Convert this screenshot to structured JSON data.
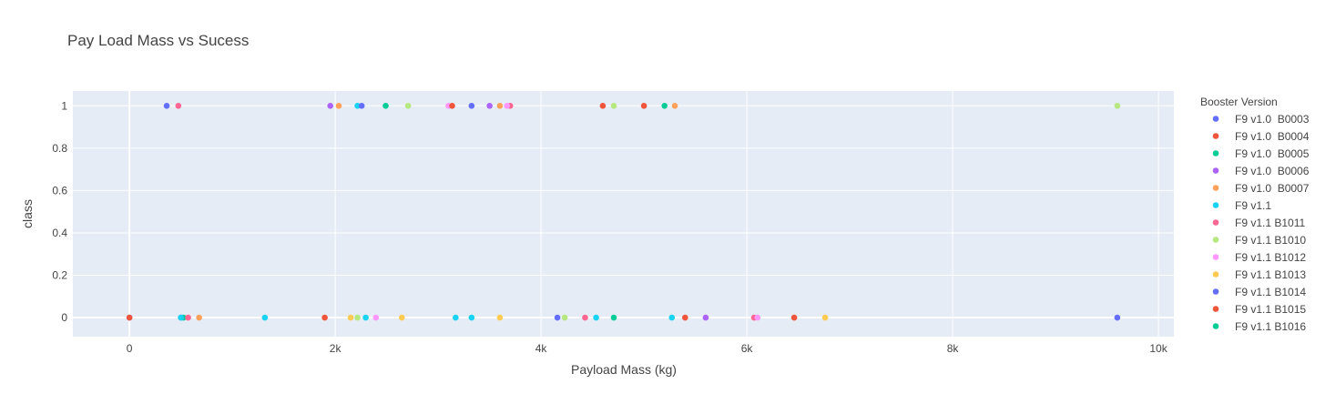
{
  "chart_data": {
    "type": "scatter",
    "title": "Pay Load Mass vs Sucess",
    "xlabel": "Payload Mass (kg)",
    "ylabel": "class",
    "xlim": [
      -550,
      10150
    ],
    "ylim": [
      -0.09,
      1.07
    ],
    "x_ticks": [
      0,
      2000,
      4000,
      6000,
      8000,
      10000
    ],
    "x_tick_labels": [
      "0",
      "2k",
      "4k",
      "6k",
      "8k",
      "10k"
    ],
    "y_ticks": [
      0,
      0.2,
      0.4,
      0.6,
      0.8,
      1
    ],
    "y_tick_labels": [
      "0",
      "0.2",
      "0.4",
      "0.6",
      "0.8",
      "1"
    ],
    "grid": true,
    "legend_title": "Booster Version",
    "legend_position": "right",
    "plot_background": "#e5ecf6",
    "series": [
      {
        "name": "F9 v1.0  B0003",
        "color": "#636efa",
        "points": [
          [
            0,
            0
          ]
        ]
      },
      {
        "name": "F9 v1.0  B0004",
        "color": "#EF553B",
        "points": [
          [
            0,
            0
          ]
        ]
      },
      {
        "name": "F9 v1.0  B0005",
        "color": "#00cc96",
        "points": [
          [
            525,
            0
          ]
        ]
      },
      {
        "name": "F9 v1.0  B0006",
        "color": "#ab63fa",
        "points": [
          [
            500,
            0
          ]
        ]
      },
      {
        "name": "F9 v1.0  B0007",
        "color": "#FFA15A",
        "points": [
          [
            677,
            0
          ]
        ]
      },
      {
        "name": "F9 v1.1",
        "color": "#19d3f3",
        "points": [
          [
            500,
            0
          ],
          [
            1316,
            0
          ],
          [
            2216,
            1
          ],
          [
            2296,
            0
          ],
          [
            3170,
            0
          ],
          [
            3325,
            0
          ],
          [
            4535,
            0
          ],
          [
            5271,
            0
          ]
        ]
      },
      {
        "name": "F9 v1.1 B1011",
        "color": "#FF6692",
        "points": [
          [
            570,
            0
          ],
          [
            475,
            1
          ],
          [
            3700,
            1
          ],
          [
            4428,
            0
          ],
          [
            6070,
            0
          ]
        ]
      },
      {
        "name": "F9 v1.1 B1010",
        "color": "#B6E880",
        "points": [
          [
            2216,
            0
          ],
          [
            2708,
            1
          ],
          [
            4230,
            0
          ],
          [
            4707,
            1
          ],
          [
            9600,
            1
          ]
        ]
      },
      {
        "name": "F9 v1.1 B1012",
        "color": "#FF97FF",
        "points": [
          [
            2395,
            0
          ],
          [
            3100,
            1
          ],
          [
            3669,
            1
          ],
          [
            6104,
            0
          ]
        ]
      },
      {
        "name": "F9 v1.1 B1013",
        "color": "#FECB52",
        "points": [
          [
            2150,
            0
          ],
          [
            2647,
            0
          ],
          [
            3600,
            0
          ],
          [
            6761,
            0
          ]
        ]
      },
      {
        "name": "F9 v1.1 B1014",
        "color": "#636efa",
        "points": [
          [
            362,
            1
          ],
          [
            2257,
            1
          ],
          [
            3325,
            1
          ],
          [
            4159,
            0
          ],
          [
            9600,
            0
          ]
        ]
      },
      {
        "name": "F9 v1.1 B1015",
        "color": "#EF553B",
        "points": [
          [
            1898,
            0
          ],
          [
            3136,
            1
          ],
          [
            4600,
            1
          ],
          [
            5000,
            1
          ],
          [
            5400,
            0
          ],
          [
            6460,
            0
          ]
        ]
      },
      {
        "name": "F9 v1.1 B1016",
        "color": "#00cc96",
        "points": [
          [
            2490,
            1
          ],
          [
            4707,
            0
          ],
          [
            5200,
            1
          ]
        ]
      },
      {
        "name": "",
        "color": "#ab63fa",
        "points": [
          [
            1952,
            1
          ],
          [
            3500,
            1
          ],
          [
            5600,
            0
          ]
        ]
      },
      {
        "name": "",
        "color": "#FFA15A",
        "points": [
          [
            2034,
            1
          ],
          [
            3600,
            1
          ],
          [
            5300,
            1
          ]
        ]
      }
    ]
  }
}
